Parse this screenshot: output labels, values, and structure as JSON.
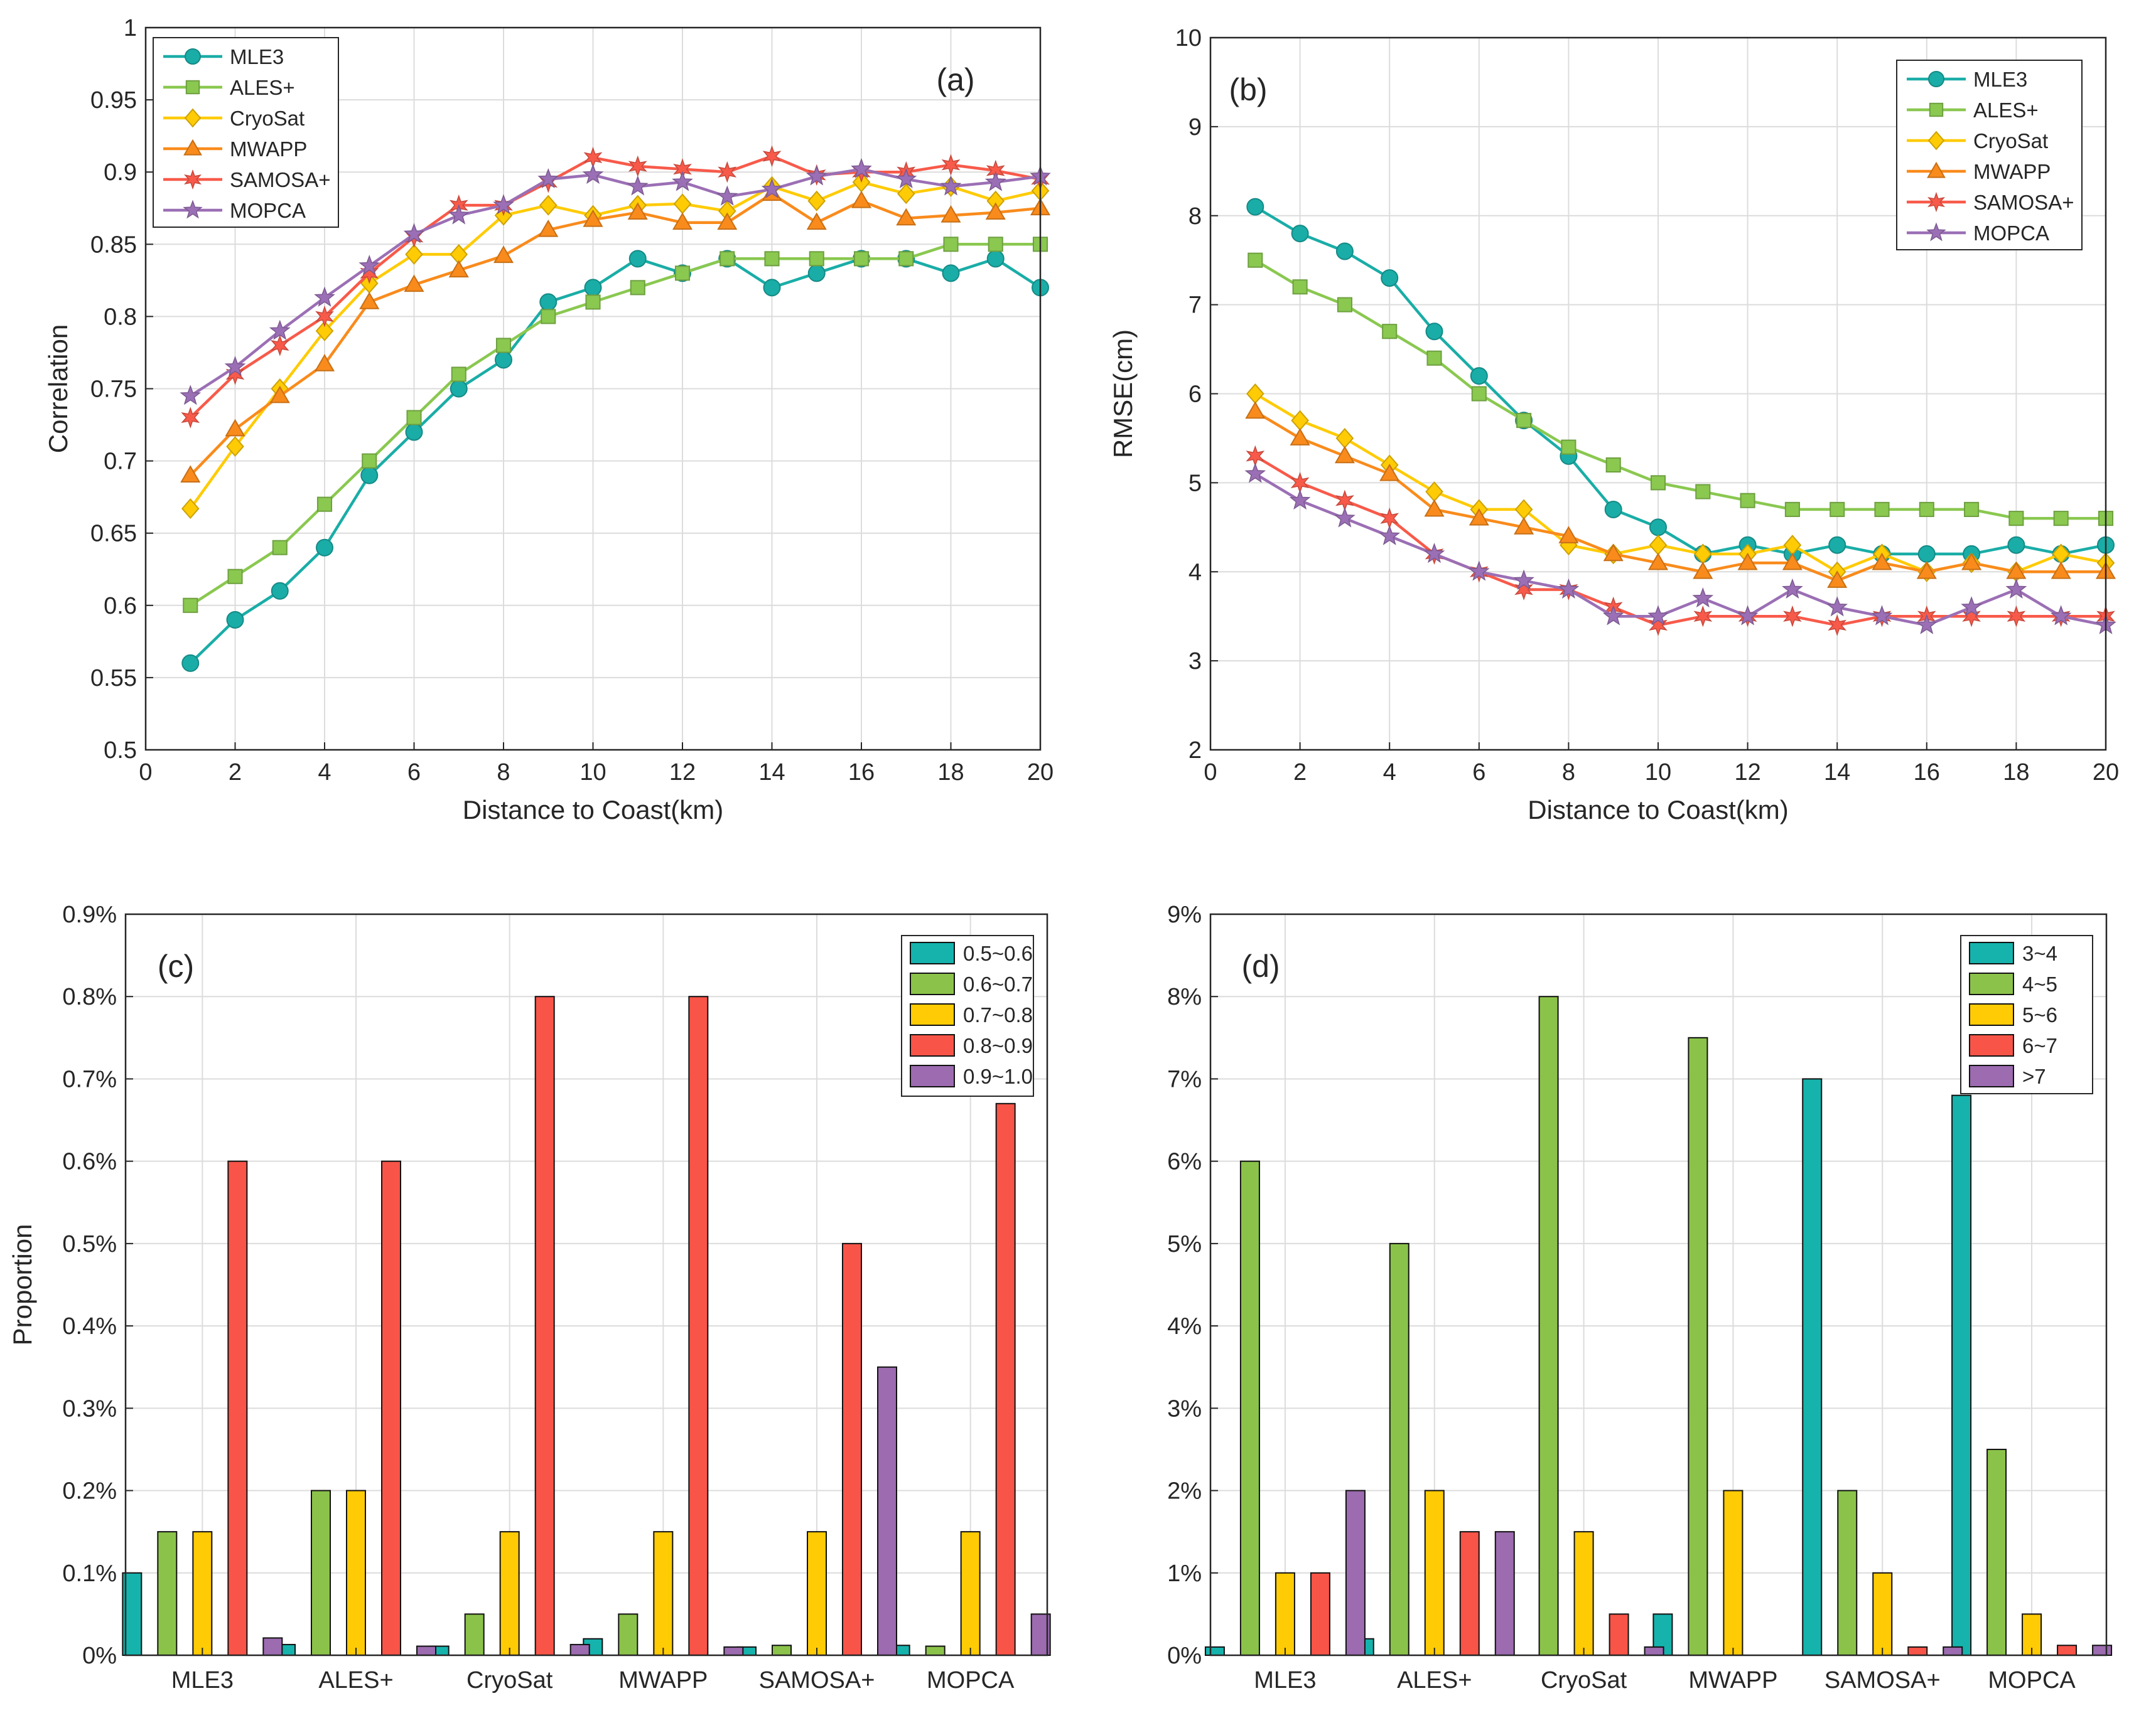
{
  "colors": {
    "MLE3": "#1aada7",
    "ALES+": "#8ac850",
    "CryoSat": "#ffcb05",
    "MWAPP": "#f98b1c",
    "SAMOSA+": "#f85a4a",
    "MOPCA": "#9b6fb5"
  },
  "bar_colors": [
    "#16b3ad",
    "#8bc34a",
    "#ffcb05",
    "#f85448",
    "#9c6bb0"
  ],
  "chart_data": [
    {
      "type": "line",
      "panel_label": "(a)",
      "xlabel": "Distance to Coast(km)",
      "ylabel": "Correlation",
      "xlim": [
        0,
        20
      ],
      "ylim": [
        0.5,
        1
      ],
      "xticks": [
        "0",
        "2",
        "4",
        "6",
        "8",
        "10",
        "12",
        "14",
        "16",
        "18",
        "20"
      ],
      "yticks": [
        "0.5",
        "0.55",
        "0.6",
        "0.65",
        "0.7",
        "0.75",
        "0.8",
        "0.85",
        "0.9",
        "0.95",
        "1"
      ],
      "grid": true,
      "legend": "top-left",
      "x": [
        1,
        2,
        3,
        4,
        5,
        6,
        7,
        8,
        9,
        10,
        11,
        12,
        13,
        14,
        15,
        16,
        17,
        18,
        19,
        20
      ],
      "series": [
        {
          "name": "MLE3",
          "marker": "circle",
          "values": [
            0.56,
            0.59,
            0.61,
            0.64,
            0.69,
            0.72,
            0.75,
            0.77,
            0.81,
            0.82,
            0.84,
            0.83,
            0.84,
            0.82,
            0.83,
            0.84,
            0.84,
            0.83,
            0.84,
            0.82
          ]
        },
        {
          "name": "ALES+",
          "marker": "square",
          "values": [
            0.6,
            0.62,
            0.64,
            0.67,
            0.7,
            0.73,
            0.76,
            0.78,
            0.8,
            0.81,
            0.82,
            0.83,
            0.84,
            0.84,
            0.84,
            0.84,
            0.84,
            0.85,
            0.85,
            0.85
          ]
        },
        {
          "name": "CryoSat",
          "marker": "diamond",
          "values": [
            0.667,
            0.71,
            0.75,
            0.79,
            0.823,
            0.843,
            0.843,
            0.87,
            0.877,
            0.87,
            0.877,
            0.878,
            0.873,
            0.89,
            0.88,
            0.893,
            0.885,
            0.89,
            0.88,
            0.887
          ]
        },
        {
          "name": "MWAPP",
          "marker": "triangle",
          "values": [
            0.69,
            0.722,
            0.745,
            0.767,
            0.81,
            0.822,
            0.832,
            0.842,
            0.86,
            0.867,
            0.872,
            0.865,
            0.865,
            0.885,
            0.865,
            0.88,
            0.868,
            0.87,
            0.872,
            0.875
          ]
        },
        {
          "name": "SAMOSA+",
          "marker": "star6",
          "values": [
            0.73,
            0.76,
            0.78,
            0.8,
            0.83,
            0.855,
            0.877,
            0.877,
            0.893,
            0.91,
            0.904,
            0.902,
            0.9,
            0.911,
            0.898,
            0.9,
            0.9,
            0.905,
            0.901,
            0.895
          ]
        },
        {
          "name": "MOPCA",
          "marker": "star5",
          "values": [
            0.745,
            0.765,
            0.79,
            0.813,
            0.835,
            0.857,
            0.87,
            0.877,
            0.895,
            0.898,
            0.89,
            0.893,
            0.883,
            0.888,
            0.897,
            0.902,
            0.895,
            0.89,
            0.893,
            0.897
          ]
        }
      ]
    },
    {
      "type": "line",
      "panel_label": "(b)",
      "xlabel": "Distance to Coast(km)",
      "ylabel": "RMSE(cm)",
      "xlim": [
        0,
        20
      ],
      "ylim": [
        2,
        10
      ],
      "xticks": [
        "0",
        "2",
        "4",
        "6",
        "8",
        "10",
        "12",
        "14",
        "16",
        "18",
        "20"
      ],
      "yticks": [
        "2",
        "3",
        "4",
        "5",
        "6",
        "7",
        "8",
        "9",
        "10"
      ],
      "grid": true,
      "legend": "top-right",
      "x": [
        1,
        2,
        3,
        4,
        5,
        6,
        7,
        8,
        9,
        10,
        11,
        12,
        13,
        14,
        15,
        16,
        17,
        18,
        19,
        20
      ],
      "series": [
        {
          "name": "MLE3",
          "marker": "circle",
          "values": [
            8.1,
            7.8,
            7.6,
            7.3,
            6.7,
            6.2,
            5.7,
            5.3,
            4.7,
            4.5,
            4.2,
            4.3,
            4.2,
            4.3,
            4.2,
            4.2,
            4.2,
            4.3,
            4.2,
            4.3
          ]
        },
        {
          "name": "ALES+",
          "marker": "square",
          "values": [
            7.5,
            7.2,
            7.0,
            6.7,
            6.4,
            6.0,
            5.7,
            5.4,
            5.2,
            5.0,
            4.9,
            4.8,
            4.7,
            4.7,
            4.7,
            4.7,
            4.7,
            4.6,
            4.6,
            4.6
          ]
        },
        {
          "name": "CryoSat",
          "marker": "diamond",
          "values": [
            6.0,
            5.7,
            5.5,
            5.2,
            4.9,
            4.7,
            4.7,
            4.3,
            4.2,
            4.3,
            4.2,
            4.2,
            4.3,
            4.0,
            4.2,
            4.0,
            4.1,
            4.0,
            4.2,
            4.1
          ]
        },
        {
          "name": "MWAPP",
          "marker": "triangle",
          "values": [
            5.8,
            5.5,
            5.3,
            5.1,
            4.7,
            4.6,
            4.5,
            4.4,
            4.2,
            4.1,
            4.0,
            4.1,
            4.1,
            3.9,
            4.1,
            4.0,
            4.1,
            4.0,
            4.0,
            4.0
          ]
        },
        {
          "name": "SAMOSA+",
          "marker": "star6",
          "values": [
            5.3,
            5.0,
            4.8,
            4.6,
            4.2,
            4.0,
            3.8,
            3.8,
            3.6,
            3.4,
            3.5,
            3.5,
            3.5,
            3.4,
            3.5,
            3.5,
            3.5,
            3.5,
            3.5,
            3.5
          ]
        },
        {
          "name": "MOPCA",
          "marker": "star5",
          "values": [
            5.1,
            4.8,
            4.6,
            4.4,
            4.2,
            4.0,
            3.9,
            3.8,
            3.5,
            3.5,
            3.7,
            3.5,
            3.8,
            3.6,
            3.5,
            3.4,
            3.6,
            3.8,
            3.5,
            3.4
          ]
        }
      ]
    },
    {
      "type": "bar",
      "panel_label": "(c)",
      "xlabel": "",
      "ylabel": "Proportion",
      "ylim": [
        0,
        0.9
      ],
      "yticks": [
        "0%",
        "0.1%",
        "0.2%",
        "0.3%",
        "0.4%",
        "0.5%",
        "0.6%",
        "0.7%",
        "0.8%",
        "0.9%"
      ],
      "grid": true,
      "legend": "top-right",
      "categories": [
        "MLE3",
        "ALES+",
        "CryoSat",
        "MWAPP",
        "SAMOSA+",
        "MOPCA"
      ],
      "series": [
        {
          "name": "0.5~0.6",
          "values": [
            0.1,
            0.013,
            0.011,
            0.02,
            0.01,
            0.012
          ]
        },
        {
          "name": "0.6~0.7",
          "values": [
            0.15,
            0.2,
            0.05,
            0.05,
            0.012,
            0.011
          ]
        },
        {
          "name": "0.7~0.8",
          "values": [
            0.15,
            0.2,
            0.15,
            0.15,
            0.15,
            0.15
          ]
        },
        {
          "name": "0.8~0.9",
          "values": [
            0.6,
            0.6,
            0.8,
            0.8,
            0.5,
            0.67
          ]
        },
        {
          "name": "0.9~1.0",
          "values": [
            0.021,
            0.011,
            0.013,
            0.01,
            0.35,
            0.05
          ]
        }
      ]
    },
    {
      "type": "bar",
      "panel_label": "(d)",
      "xlabel": "",
      "ylabel": "",
      "ylim": [
        0,
        9
      ],
      "yticks": [
        "0%",
        "1%",
        "2%",
        "3%",
        "4%",
        "5%",
        "6%",
        "7%",
        "8%",
        "9%"
      ],
      "grid": true,
      "legend": "top-right",
      "categories": [
        "MLE3",
        "ALES+",
        "CryoSat",
        "MWAPP",
        "SAMOSA+",
        "MOPCA"
      ],
      "series": [
        {
          "name": "3~4",
          "values": [
            0.1,
            0.2,
            0,
            0.5,
            7.0,
            6.8
          ]
        },
        {
          "name": "4~5",
          "values": [
            6.0,
            5.0,
            8.0,
            7.5,
            2.0,
            2.5
          ]
        },
        {
          "name": "5~6",
          "values": [
            1.0,
            2.0,
            1.5,
            2.0,
            1.0,
            0.5
          ]
        },
        {
          "name": "6~7",
          "values": [
            1.0,
            1.5,
            0.5,
            0,
            0.1,
            0.12
          ]
        },
        {
          "name": ">7",
          "values": [
            2.0,
            1.5,
            0.1,
            0,
            0.1,
            0.12
          ]
        }
      ]
    }
  ]
}
